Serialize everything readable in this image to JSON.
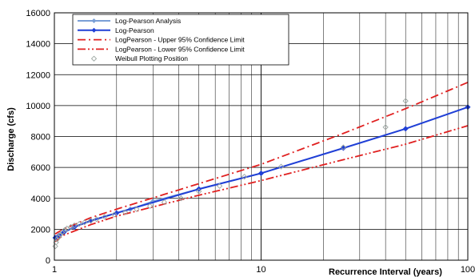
{
  "chart_data": {
    "type": "line",
    "title": "",
    "xlabel": "Recurrence Interval (years)",
    "ylabel": "Discharge (cfs)",
    "xscale": "log",
    "xlim": [
      1,
      100
    ],
    "ylim": [
      0,
      16000
    ],
    "x_ticks": [
      1,
      10,
      100
    ],
    "y_ticks": [
      0,
      2000,
      4000,
      6000,
      8000,
      10000,
      12000,
      14000,
      16000
    ],
    "grid": true,
    "legend_position": "top-left",
    "series": [
      {
        "name": "Log-Pearson Analysis",
        "color": "#7a9fd6",
        "style": "line-markers",
        "x": [
          1.01,
          1.05,
          1.11,
          1.25,
          1.5,
          2,
          2.33,
          3,
          5,
          10
        ],
        "y": [
          1450,
          1580,
          1800,
          2150,
          2550,
          3050,
          3300,
          3800,
          4600,
          5620
        ]
      },
      {
        "name": "Log-Pearson",
        "color": "#1f3fd6",
        "style": "line-markers",
        "x": [
          1.01,
          1.05,
          1.11,
          1.25,
          1.5,
          2,
          5,
          10,
          25,
          50,
          100
        ],
        "y": [
          1450,
          1580,
          1800,
          2150,
          2550,
          3050,
          4600,
          5620,
          7250,
          8500,
          9900
        ]
      },
      {
        "name": "LogPearson - Upper 95% Confidence Limit",
        "color": "#e02020",
        "style": "dash-dot",
        "x": [
          1.01,
          1.1,
          1.5,
          2,
          5,
          10,
          25,
          50,
          100
        ],
        "y": [
          1700,
          2000,
          2750,
          3300,
          4950,
          6200,
          8200,
          9800,
          11500
        ]
      },
      {
        "name": "LogPearson - Lower 95% Confidence Limit",
        "color": "#e02020",
        "style": "dash-dot-dot",
        "x": [
          1.01,
          1.1,
          1.5,
          2,
          5,
          10,
          25,
          50,
          100
        ],
        "y": [
          1200,
          1600,
          2300,
          2850,
          4200,
          5150,
          6500,
          7500,
          8700
        ]
      },
      {
        "name": "Weibull Plotting Position",
        "color": "#9aa5a0",
        "style": "markers",
        "x": [
          1.01,
          1.02,
          1.03,
          1.05,
          1.07,
          1.09,
          1.12,
          1.15,
          1.2,
          1.25,
          1.32,
          1.4,
          1.5,
          1.6,
          1.75,
          1.95,
          2.2,
          2.5,
          2.9,
          3.4,
          4.1,
          5.0,
          6.3,
          8.3,
          12.5,
          25,
          40,
          50
        ],
        "y": [
          900,
          1150,
          1350,
          1500,
          1650,
          1800,
          1950,
          2050,
          2150,
          2250,
          2350,
          2450,
          2550,
          2650,
          2800,
          2950,
          3100,
          3300,
          3500,
          3750,
          4000,
          4450,
          4800,
          5400,
          6050,
          7300,
          8600,
          10300
        ]
      }
    ]
  }
}
